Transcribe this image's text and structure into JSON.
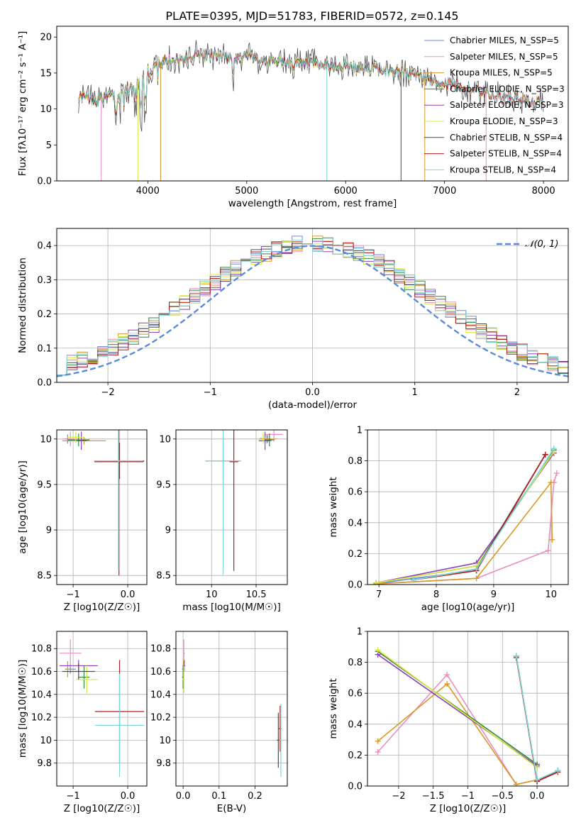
{
  "figure_title": "PLATE=0395, MJD=51783, FIBERID=0572, z=0.145",
  "colors": [
    "#6d8fd8",
    "#e88fc4",
    "#d99a2b",
    "#2c8a3a",
    "#8e3fbf",
    "#d8ea3c",
    "#4a4a4a",
    "#b51e1e",
    "#7fd6d6"
  ],
  "fit_labels": [
    "Chabrier MILES, N_SSP=5",
    "Salpeter MILES, N_SSP=5",
    "Kroupa MILES, N_SSP=5",
    "Chabrier ELODIE, N_SSP=3",
    "Salpeter ELODIE, N_SSP=3",
    "Kroupa ELODIE, N_SSP=3",
    "Chabrier STELIB, N_SSP=4",
    "Salpeter STELIB, N_SSP=4",
    "Kroupa STELIB, N_SSP=4"
  ],
  "chart_data": [
    {
      "id": "spectrum",
      "type": "line",
      "title": "PLATE=0395, MJD=51783, FIBERID=0572, z=0.145",
      "xlabel": "wavelength [Angstrom, rest frame]",
      "ylabel": "Flux [fλ10⁻¹⁷ erg cm⁻² s⁻¹ A⁻¹]",
      "xlim": [
        3080,
        8250
      ],
      "ylim": [
        0,
        21.5
      ],
      "xticks": [
        4000,
        5000,
        6000,
        7000,
        8000
      ],
      "yticks": [
        0,
        5,
        10,
        15,
        20
      ],
      "legend_position": "right",
      "continuum_x": [
        3300,
        3500,
        3700,
        3900,
        4000,
        4100,
        4300,
        4500,
        5000,
        5500,
        6000,
        6500,
        7000,
        7500,
        8000
      ],
      "continuum_y": [
        11.8,
        11.2,
        12.2,
        13.6,
        15.0,
        16.4,
        17.0,
        17.4,
        17.3,
        16.3,
        15.8,
        15.3,
        13.6,
        11.9,
        10.8
      ],
      "grid": false
    },
    {
      "id": "residuals",
      "type": "step",
      "xlabel": "(data-model)/error",
      "ylabel": "Normed distribution",
      "xlim": [
        -2.5,
        2.5
      ],
      "ylim": [
        0,
        0.45
      ],
      "xticks": [
        -2,
        -1,
        0,
        1,
        2
      ],
      "yticks": [
        0.0,
        0.1,
        0.2,
        0.3,
        0.4
      ],
      "bin_width": 0.1,
      "reference_curve": "𝒩(0, 1)",
      "legend_position": "top-right",
      "grid": true
    },
    {
      "id": "age_vs_Z",
      "type": "errorbar",
      "xlabel": "Z [log10(Z/Z☉)]",
      "ylabel": "age [log10(age/yr)]",
      "xlim": [
        -1.3,
        0.35
      ],
      "ylim": [
        8.4,
        10.1
      ],
      "xticks": [
        -1,
        0
      ],
      "yticks": [
        8.5,
        9.0,
        9.5,
        10.0
      ],
      "points": [
        {
          "x": -1.1,
          "xerr": 0.05,
          "y": 10.0,
          "yerr": 0.05
        },
        {
          "x": -1.05,
          "xerr": 0.15,
          "y": 10.0,
          "yerr": 0.08
        },
        {
          "x": -0.8,
          "xerr": 0.4,
          "y": 9.98,
          "yerr": 0.04
        },
        {
          "x": -0.9,
          "xerr": 0.2,
          "y": 9.99,
          "yerr": 0.07
        },
        {
          "x": -0.85,
          "xerr": 0.1,
          "y": 9.98,
          "yerr": 0.1
        },
        {
          "x": -0.95,
          "xerr": 0.15,
          "y": 10.02,
          "yerr": 0.06
        },
        {
          "x": -0.15,
          "xerr": 0.45,
          "y": 9.76,
          "yerr": 0.2
        },
        {
          "x": -0.16,
          "xerr": 0.45,
          "y": 9.75,
          "yerr": 1.25
        },
        {
          "x": -0.17,
          "xerr": 0.45,
          "y": 9.76,
          "yerr": 1.2
        }
      ],
      "grid": true
    },
    {
      "id": "age_vs_mass",
      "type": "errorbar",
      "xlabel": "mass [log10(M/M☉)]",
      "ylabel": "",
      "xlim": [
        9.6,
        10.85
      ],
      "ylim": [
        8.4,
        10.1
      ],
      "xticks": [
        10.0,
        10.5
      ],
      "yticks": [
        8.5,
        9.0,
        9.5,
        10.0
      ],
      "points": [
        {
          "x": 10.62,
          "xerr": 0.04,
          "y": 10.0,
          "yerr": 0.05
        },
        {
          "x": 10.7,
          "xerr": 0.1,
          "y": 10.05,
          "yerr": 0.08
        },
        {
          "x": 10.63,
          "xerr": 0.1,
          "y": 10.0,
          "yerr": 0.04
        },
        {
          "x": 10.65,
          "xerr": 0.05,
          "y": 9.99,
          "yerr": 0.07
        },
        {
          "x": 10.6,
          "xerr": 0.07,
          "y": 9.98,
          "yerr": 0.1
        },
        {
          "x": 10.58,
          "xerr": 0.04,
          "y": 10.01,
          "yerr": 0.06
        },
        {
          "x": 10.13,
          "xerr": 0.2,
          "y": 9.76,
          "yerr": 0.2
        },
        {
          "x": 10.25,
          "xerr": 0.05,
          "y": 9.75,
          "yerr": 1.2
        },
        {
          "x": 10.13,
          "xerr": 0.2,
          "y": 9.76,
          "yerr": 1.25
        }
      ],
      "grid": true
    },
    {
      "id": "weight_vs_age",
      "type": "line",
      "xlabel": "age [log10(age/yr)]",
      "ylabel": "mass weight",
      "xlim": [
        6.8,
        10.3
      ],
      "ylim": [
        0,
        1.0
      ],
      "xticks": [
        7,
        8,
        9,
        10
      ],
      "yticks": [
        0.0,
        0.2,
        0.4,
        0.6,
        0.8,
        1.0
      ],
      "series": [
        {
          "x": [
            6.95,
            7.6,
            8.7,
            9.9
          ],
          "y": [
            0.005,
            0.04,
            0.09,
            0.84
          ]
        },
        {
          "x": [
            7.0,
            8.7,
            9.95,
            10.05,
            10.1
          ],
          "y": [
            0.005,
            0.04,
            0.22,
            0.66,
            0.72
          ]
        },
        {
          "x": [
            6.95,
            8.7,
            10.0,
            10.02
          ],
          "y": [
            0.005,
            0.04,
            0.66,
            0.29
          ]
        },
        {
          "x": [
            6.95,
            8.7,
            10.05
          ],
          "y": [
            0.01,
            0.12,
            0.87
          ]
        },
        {
          "x": [
            6.95,
            8.7,
            10.05
          ],
          "y": [
            0.01,
            0.14,
            0.85
          ]
        },
        {
          "x": [
            6.95,
            8.7,
            10.05
          ],
          "y": [
            0.01,
            0.12,
            0.86
          ]
        },
        {
          "x": [
            7.6,
            8.7,
            9.9
          ],
          "y": [
            0.03,
            0.1,
            0.84
          ]
        },
        {
          "x": [
            7.6,
            8.7,
            9.9
          ],
          "y": [
            0.03,
            0.09,
            0.84
          ]
        },
        {
          "x": [
            7.6,
            8.7,
            10.05
          ],
          "y": [
            0.03,
            0.1,
            0.88
          ]
        }
      ],
      "grid": true
    },
    {
      "id": "mass_vs_Z",
      "type": "errorbar",
      "xlabel": "Z [log10(Z/Z☉)]",
      "ylabel": "mass [log10(M/M☉)]",
      "xlim": [
        -1.3,
        0.35
      ],
      "ylim": [
        9.6,
        10.95
      ],
      "xticks": [
        -1,
        0
      ],
      "yticks": [
        9.8,
        10.0,
        10.2,
        10.4,
        10.6,
        10.8
      ],
      "points": [
        {
          "x": -1.05,
          "xerr": 0.1,
          "y": 10.62,
          "yerr": 0.04
        },
        {
          "x": -1.05,
          "xerr": 0.2,
          "y": 10.76,
          "yerr": 0.12
        },
        {
          "x": -1.1,
          "xerr": 0.05,
          "y": 10.62,
          "yerr": 0.07
        },
        {
          "x": -0.8,
          "xerr": 0.1,
          "y": 10.55,
          "yerr": 0.1
        },
        {
          "x": -0.9,
          "xerr": 0.35,
          "y": 10.65,
          "yerr": 0.05
        },
        {
          "x": -0.75,
          "xerr": 0.2,
          "y": 10.53,
          "yerr": 0.12
        },
        {
          "x": -0.9,
          "xerr": 0.3,
          "y": 10.6,
          "yerr": 0.07
        },
        {
          "x": -0.15,
          "xerr": 0.45,
          "y": 10.25,
          "yerr": 0.45
        },
        {
          "x": -0.15,
          "xerr": 0.45,
          "y": 10.13,
          "yerr": 0.45
        }
      ],
      "grid": true
    },
    {
      "id": "mass_vs_ebv",
      "type": "errorbar",
      "xlabel": "E(B-V)",
      "ylabel": "",
      "xlim": [
        -0.02,
        0.29
      ],
      "ylim": [
        9.6,
        10.95
      ],
      "xticks": [
        0.0,
        0.1,
        0.2
      ],
      "yticks": [
        9.8,
        10.0,
        10.2,
        10.4,
        10.6,
        10.8
      ],
      "points": [
        {
          "x": 0.0,
          "xerr": 0.003,
          "y": 10.62,
          "yerr": 0.04
        },
        {
          "x": 0.002,
          "xerr": 0.003,
          "y": 10.76,
          "yerr": 0.12
        },
        {
          "x": 0.001,
          "xerr": 0.003,
          "y": 10.62,
          "yerr": 0.07
        },
        {
          "x": 0.0,
          "xerr": 0.003,
          "y": 10.55,
          "yerr": 0.1
        },
        {
          "x": 0.003,
          "xerr": 0.003,
          "y": 10.65,
          "yerr": 0.05
        },
        {
          "x": 0.002,
          "xerr": 0.003,
          "y": 10.53,
          "yerr": 0.12
        },
        {
          "x": 0.265,
          "xerr": 0.004,
          "y": 10.0,
          "yerr": 0.24
        },
        {
          "x": 0.27,
          "xerr": 0.004,
          "y": 10.1,
          "yerr": 0.2
        },
        {
          "x": 0.272,
          "xerr": 0.004,
          "y": 10.0,
          "yerr": 0.32
        }
      ],
      "grid": true
    },
    {
      "id": "weight_vs_Z",
      "type": "line",
      "xlabel": "Z [log10(Z/Z☉)]",
      "ylabel": "mass weight",
      "xlim": [
        -2.45,
        0.45
      ],
      "ylim": [
        0,
        1.0
      ],
      "xticks": [
        -2.0,
        -1.5,
        -1.0,
        -0.5,
        0.0
      ],
      "yticks": [
        0.0,
        0.2,
        0.4,
        0.6,
        0.8,
        1.0
      ],
      "series": [
        {
          "x": [
            -0.3,
            0.0,
            0.3
          ],
          "y": [
            0.84,
            0.03,
            0.1
          ]
        },
        {
          "x": [
            -2.3,
            -1.3,
            -0.3,
            0.0
          ],
          "y": [
            0.22,
            0.72,
            0.01,
            0.04
          ]
        },
        {
          "x": [
            -2.3,
            -1.3,
            -0.3,
            0.0
          ],
          "y": [
            0.29,
            0.66,
            0.01,
            0.04
          ]
        },
        {
          "x": [
            -2.3,
            0.0
          ],
          "y": [
            0.87,
            0.14
          ]
        },
        {
          "x": [
            -2.3,
            0.0
          ],
          "y": [
            0.85,
            0.13
          ]
        },
        {
          "x": [
            -2.3,
            0.0
          ],
          "y": [
            0.88,
            0.12
          ]
        },
        {
          "x": [
            -0.3,
            0.0,
            0.3
          ],
          "y": [
            0.84,
            0.03,
            0.1
          ]
        },
        {
          "x": [
            -0.3,
            0.0,
            0.3
          ],
          "y": [
            0.83,
            0.03,
            0.09
          ]
        },
        {
          "x": [
            -0.3,
            0.0,
            0.3
          ],
          "y": [
            0.84,
            0.04,
            0.1
          ]
        }
      ],
      "grid": true
    }
  ]
}
